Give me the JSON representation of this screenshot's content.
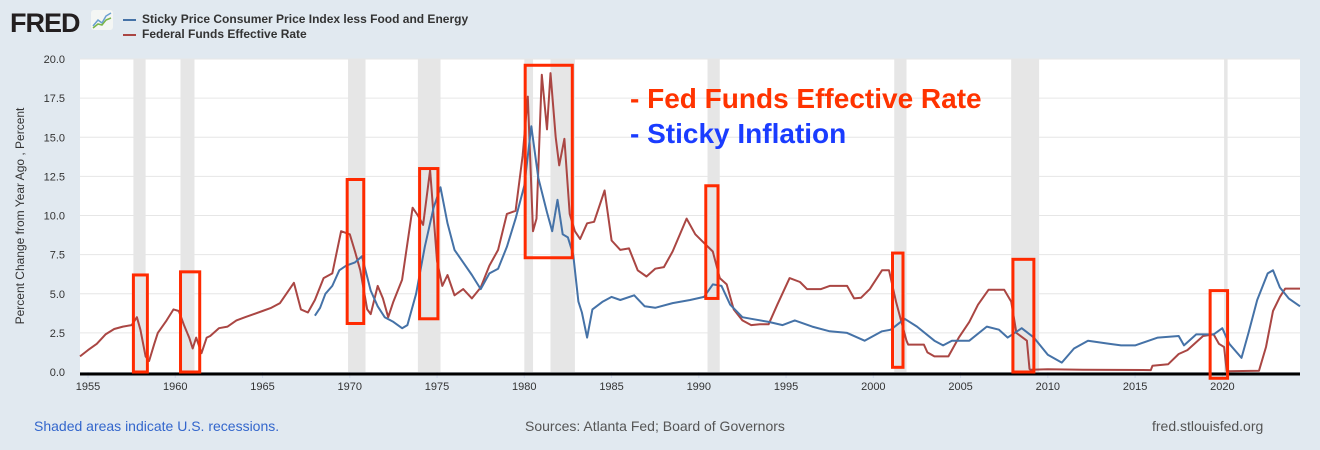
{
  "header": {
    "logo_text": "FRED",
    "logo_icon": "line-chart-icon"
  },
  "legend": [
    {
      "label": "Sticky Price Consumer Price Index less Food and Energy",
      "color": "#4572a7"
    },
    {
      "label": "Federal Funds Effective Rate",
      "color": "#aa4643"
    }
  ],
  "footer": {
    "note": "Shaded areas indicate U.S. recessions.",
    "sources": "Sources: Atlanta Fed; Board of Governors",
    "site": "fred.stlouisfed.org"
  },
  "chart_data": {
    "type": "line",
    "title": "",
    "xlabel": "",
    "ylabel": "Percent Change from Year Ago , Percent",
    "xlim": [
      1954.54,
      2024.45
    ],
    "ylim": [
      0,
      20
    ],
    "grid": true,
    "legend_placement": "top-left",
    "y_ticks": [
      "0.0",
      "2.5",
      "5.0",
      "7.5",
      "10.0",
      "12.5",
      "15.0",
      "17.5",
      "20.0"
    ],
    "x_ticks": [
      "1955",
      "1960",
      "1965",
      "1970",
      "1975",
      "1980",
      "1985",
      "1990",
      "1995",
      "2000",
      "2005",
      "2010",
      "2015",
      "2020"
    ],
    "recessions": [
      [
        1957.6,
        1958.3
      ],
      [
        1960.3,
        1961.1
      ],
      [
        1969.9,
        1970.9
      ],
      [
        1973.9,
        1975.2
      ],
      [
        1980.0,
        1980.5
      ],
      [
        1981.5,
        1982.9
      ],
      [
        1990.5,
        1991.2
      ],
      [
        2001.2,
        2001.9
      ],
      [
        2007.9,
        2009.5
      ],
      [
        2020.1,
        2020.3
      ]
    ],
    "series": [
      {
        "name": "Federal Funds Effective Rate",
        "color": "#aa4643",
        "x": [
          1954.54,
          1955.0,
          1955.5,
          1956,
          1956.5,
          1957,
          1957.5,
          1957.8,
          1958.0,
          1958.3,
          1958.5,
          1958.8,
          1959.0,
          1959.5,
          1959.9,
          1960.2,
          1960.5,
          1960.8,
          1961.0,
          1961.2,
          1961.5,
          1961.8,
          1962,
          1962.5,
          1963,
          1963.5,
          1964,
          1965,
          1965.5,
          1966,
          1966.8,
          1967.2,
          1967.6,
          1968,
          1968.5,
          1969,
          1969.5,
          1970,
          1970.3,
          1970.6,
          1971,
          1971.2,
          1971.6,
          1971.9,
          1972.2,
          1972.5,
          1973,
          1973.6,
          1973.9,
          1974.2,
          1974.6,
          1975.0,
          1975.3,
          1975.6,
          1976,
          1976.5,
          1977,
          1977.5,
          1978,
          1978.5,
          1979,
          1979.5,
          1979.9,
          1980.2,
          1980.5,
          1980.7,
          1981.0,
          1981.3,
          1981.5,
          1981.8,
          1982.0,
          1982.3,
          1982.6,
          1982.9,
          1983.2,
          1983.6,
          1984.0,
          1984.6,
          1985.0,
          1985.5,
          1986,
          1986.5,
          1987,
          1987.5,
          1988,
          1988.5,
          1989.3,
          1989.8,
          1990.3,
          1990.8,
          1991.2,
          1991.6,
          1992,
          1992.5,
          1993,
          1993.5,
          1994,
          1994.5,
          1995.2,
          1995.8,
          1996.2,
          1997,
          1997.5,
          1998.5,
          1998.9,
          1999.3,
          1999.8,
          2000.5,
          2000.9,
          2001.3,
          2001.9,
          2002,
          2002.9,
          2003.1,
          2003.5,
          2004.3,
          2004.9,
          2005.5,
          2006.0,
          2006.6,
          2007.5,
          2007.9,
          2008.2,
          2008.8,
          2008.95,
          2009,
          2010,
          2012,
          2015.9,
          2016,
          2016.9,
          2017.5,
          2018,
          2018.9,
          2019.5,
          2019.8,
          2020.1,
          2020.25,
          2022.1,
          2022.5,
          2022.9,
          2023.3,
          2023.6,
          2024.45
        ],
        "y": [
          1.0,
          1.4,
          1.8,
          2.4,
          2.75,
          2.9,
          3.0,
          3.5,
          2.7,
          1.0,
          0.7,
          1.8,
          2.5,
          3.3,
          4.0,
          3.9,
          3.0,
          2.2,
          1.5,
          2.2,
          1.2,
          2.2,
          2.3,
          2.8,
          2.9,
          3.3,
          3.5,
          3.9,
          4.1,
          4.4,
          5.7,
          4.0,
          3.8,
          4.6,
          6.0,
          6.3,
          9.0,
          8.8,
          7.7,
          6.5,
          4.0,
          3.7,
          5.5,
          4.7,
          3.5,
          4.5,
          5.9,
          10.5,
          10.0,
          9.4,
          12.9,
          7.1,
          5.5,
          6.2,
          4.9,
          5.3,
          4.7,
          5.4,
          6.8,
          7.8,
          10.1,
          10.3,
          13.8,
          17.6,
          9.0,
          9.8,
          19.0,
          15.5,
          19.1,
          15.0,
          13.2,
          14.9,
          10.1,
          9.0,
          8.5,
          9.5,
          9.6,
          11.6,
          8.4,
          7.8,
          7.9,
          6.5,
          6.1,
          6.6,
          6.7,
          7.7,
          9.8,
          8.8,
          8.25,
          7.7,
          6.0,
          5.6,
          4.0,
          3.3,
          3.0,
          3.05,
          3.05,
          4.3,
          6.0,
          5.75,
          5.3,
          5.3,
          5.5,
          5.5,
          4.7,
          4.75,
          5.3,
          6.5,
          6.5,
          4.5,
          2.0,
          1.75,
          1.75,
          1.25,
          1.0,
          1.0,
          2.2,
          3.2,
          4.3,
          5.25,
          5.25,
          4.5,
          2.5,
          2.0,
          0.2,
          0.15,
          0.18,
          0.15,
          0.12,
          0.4,
          0.5,
          1.15,
          1.4,
          2.3,
          2.4,
          1.8,
          1.6,
          0.05,
          0.08,
          1.6,
          3.9,
          4.8,
          5.33,
          5.33
        ]
      },
      {
        "name": "Sticky Price Consumer Price Index less Food and Energy",
        "color": "#4572a7",
        "x": [
          1968.0,
          1968.3,
          1968.6,
          1969,
          1969.4,
          1969.8,
          1970.3,
          1970.7,
          1970.9,
          1971.2,
          1971.6,
          1972,
          1972.5,
          1973,
          1973.3,
          1973.8,
          1974.3,
          1974.8,
          1975.2,
          1975.6,
          1976,
          1976.5,
          1977,
          1977.5,
          1978,
          1978.5,
          1979,
          1979.5,
          1980,
          1980.4,
          1980.8,
          1981.3,
          1981.6,
          1981.9,
          1982.2,
          1982.5,
          1982.8,
          1983.1,
          1983.3,
          1983.6,
          1983.9,
          1984.5,
          1985,
          1985.5,
          1986.3,
          1986.9,
          1987.5,
          1988.5,
          1989.5,
          1990.3,
          1990.8,
          1991.3,
          1991.8,
          1992.5,
          1993,
          1994,
          1994.8,
          1995.5,
          1996.5,
          1997.5,
          1998.5,
          1999.5,
          2000.5,
          2001,
          2001.8,
          2002.5,
          2003.5,
          2004,
          2004.5,
          2005.5,
          2006.5,
          2007.2,
          2007.7,
          2008.5,
          2009.2,
          2010,
          2010.8,
          2011.5,
          2012.3,
          2013.5,
          2014.2,
          2015,
          2016.3,
          2017.5,
          2017.8,
          2018.5,
          2019.5,
          2020,
          2020.4,
          2021.1,
          2021.5,
          2022,
          2022.6,
          2022.9,
          2023.3,
          2023.8,
          2024.45
        ],
        "y": [
          3.6,
          4.1,
          5.0,
          5.5,
          6.5,
          6.8,
          7.0,
          7.4,
          6.5,
          5.2,
          4.2,
          3.5,
          3.2,
          2.8,
          3.0,
          5.0,
          8.0,
          10.5,
          11.8,
          9.5,
          7.8,
          7.0,
          6.2,
          5.3,
          6.3,
          6.6,
          8.0,
          9.8,
          11.9,
          15.7,
          12.4,
          10.2,
          9.0,
          11.0,
          8.8,
          8.6,
          7.5,
          4.5,
          3.8,
          2.2,
          4.0,
          4.5,
          4.8,
          4.6,
          4.9,
          4.2,
          4.1,
          4.4,
          4.6,
          4.8,
          5.6,
          5.5,
          4.3,
          3.5,
          3.4,
          3.2,
          3.0,
          3.3,
          2.9,
          2.6,
          2.5,
          2.0,
          2.6,
          2.7,
          3.4,
          2.9,
          2.0,
          1.7,
          2.0,
          2.0,
          2.9,
          2.7,
          2.2,
          2.8,
          2.2,
          1.1,
          0.6,
          1.5,
          2.0,
          1.8,
          1.7,
          1.7,
          2.2,
          2.3,
          1.7,
          2.4,
          2.4,
          2.8,
          1.8,
          0.9,
          2.5,
          4.6,
          6.3,
          6.5,
          5.4,
          4.7,
          4.2
        ]
      }
    ],
    "annotations": {
      "texts": [
        {
          "text": "- Fed Funds Effective Rate",
          "color": "#ff3300"
        },
        {
          "text": "- Sticky Inflation",
          "color": "#1a3cff"
        }
      ],
      "boxes_color": "#ff2a00",
      "boxes": [
        [
          1957.6,
          1958.4,
          0,
          6.2
        ],
        [
          1960.3,
          1961.4,
          0,
          6.4
        ],
        [
          1969.85,
          1970.8,
          3.1,
          12.3
        ],
        [
          1974.0,
          1975.05,
          3.4,
          13.0
        ],
        [
          1980.05,
          1982.75,
          7.3,
          19.6
        ],
        [
          1990.4,
          1991.1,
          4.7,
          11.9
        ],
        [
          2001.1,
          2001.7,
          0.3,
          7.6
        ],
        [
          2008.0,
          2009.2,
          0,
          7.2
        ],
        [
          2019.3,
          2020.3,
          -0.4,
          5.2
        ]
      ]
    }
  }
}
